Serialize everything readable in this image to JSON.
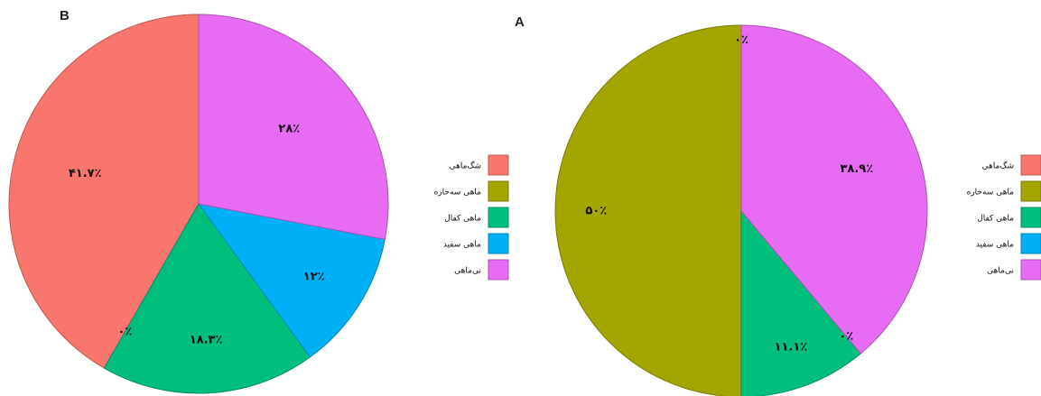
{
  "chart_data": [
    {
      "type": "pie",
      "panel_label": "B",
      "categories": [
        "شگ‌ماهی",
        "ماهی سه‌خاره",
        "ماهی کفال",
        "ماهی سفید",
        "نی‌ماهی"
      ],
      "values": [
        41.7,
        0,
        18.3,
        12,
        28
      ],
      "slice_labels": [
        "۴۱.۷٪",
        "۰٪",
        "۱۸.۳٪",
        "۱۲٪",
        "۲۸٪"
      ],
      "colors": [
        "#F8766D",
        "#A3A500",
        "#00BF7D",
        "#00B0F6",
        "#E76BF3"
      ],
      "legend": {
        "position": "right",
        "entries": [
          "شگ‌ماهی",
          "ماهی سه‌خاره",
          "ماهی کفال",
          "ماهی سفید",
          "نی‌ماهی"
        ]
      }
    },
    {
      "type": "pie",
      "panel_label": "A",
      "categories": [
        "شگ‌ماهی",
        "ماهی سه‌خاره",
        "ماهی کفال",
        "ماهی سفید",
        "نی‌ماهی"
      ],
      "values": [
        0,
        50,
        11.1,
        0,
        38.9
      ],
      "slice_labels": [
        "۰٪",
        "۵۰٪",
        "۱۱.۱٪",
        "۰٪",
        "۳۸.۹٪"
      ],
      "colors": [
        "#F8766D",
        "#A3A500",
        "#00BF7D",
        "#00B0F6",
        "#E76BF3"
      ],
      "legend": {
        "position": "right",
        "entries": [
          "شگ‌ماهی",
          "ماهی سه‌خاره",
          "ماهی کفال",
          "ماهی سفید",
          "نی‌ماهی"
        ]
      }
    }
  ]
}
